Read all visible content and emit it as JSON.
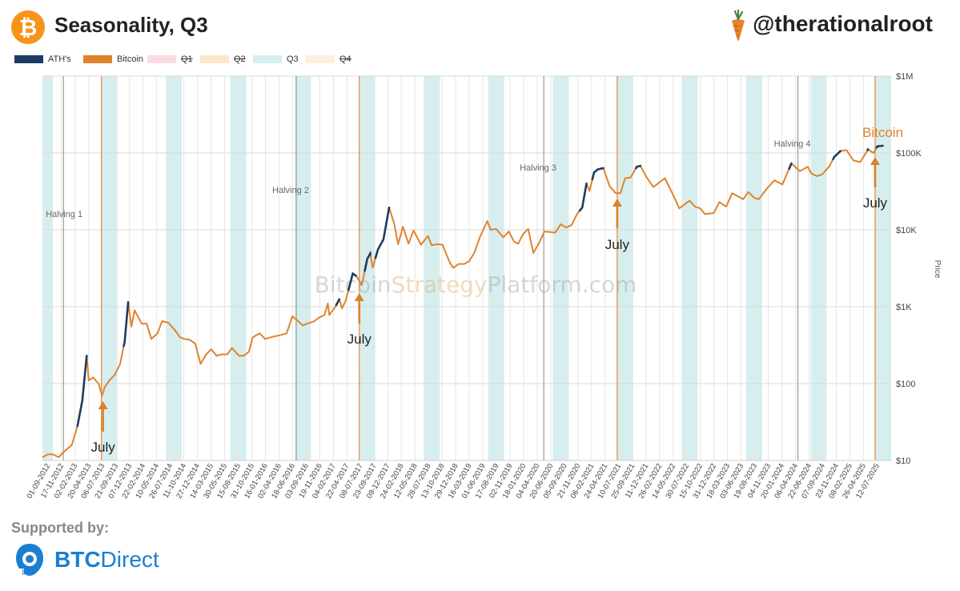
{
  "header": {
    "title": "Seasonality, Q3",
    "handle": "@therationalroot",
    "logo_glyph": "₿"
  },
  "legend": [
    {
      "label": "ATH's",
      "color": "#1f3b63",
      "struck": false
    },
    {
      "label": "Bitcoin",
      "color": "#e0832c",
      "struck": false
    },
    {
      "label": "Q1",
      "color": "#fbdde1",
      "struck": true
    },
    {
      "label": "Q2",
      "color": "#fde6cc",
      "struck": true
    },
    {
      "label": "Q3",
      "color": "#d7eeee",
      "struck": false
    },
    {
      "label": "Q4",
      "color": "#fdf0dc",
      "struck": true
    }
  ],
  "footer": {
    "supported_by": "Supported by:",
    "sponsor_bold": "BTC",
    "sponsor_thin": "Direct"
  },
  "chart_data": {
    "type": "line",
    "y_scale": "log",
    "ylim": [
      10,
      1000000
    ],
    "ylabel": "Price",
    "y_ticks": [
      {
        "value": 10,
        "label": "$10"
      },
      {
        "value": 100,
        "label": "$100"
      },
      {
        "value": 1000,
        "label": "$1K"
      },
      {
        "value": 10000,
        "label": "$10K"
      },
      {
        "value": 100000,
        "label": "$100K"
      },
      {
        "value": 1000000,
        "label": "$1M"
      }
    ],
    "xlim": [
      "2012-08-01",
      "2025-09-30"
    ],
    "x_tick_labels": [
      "01-09-2012",
      "17-11-2012",
      "02-02-2013",
      "20-04-2013",
      "06-07-2013",
      "21-09-2013",
      "07-12-2013",
      "22-02-2014",
      "10-05-2014",
      "26-07-2014",
      "11-10-2014",
      "27-12-2014",
      "14-03-2015",
      "30-05-2015",
      "15-08-2015",
      "31-10-2015",
      "16-01-2016",
      "02-04-2016",
      "18-06-2016",
      "03-09-2016",
      "19-11-2016",
      "04-02-2017",
      "22-04-2017",
      "08-07-2017",
      "23-09-2017",
      "09-12-2017",
      "24-02-2018",
      "12-05-2018",
      "28-07-2018",
      "13-10-2018",
      "29-12-2018",
      "16-03-2019",
      "01-06-2019",
      "17-08-2019",
      "02-11-2019",
      "18-01-2020",
      "04-04-2020",
      "20-06-2020",
      "05-09-2020",
      "21-11-2020",
      "06-02-2021",
      "24-04-2021",
      "10-07-2021",
      "25-09-2021",
      "11-12-2021",
      "26-02-2022",
      "14-05-2022",
      "30-07-2022",
      "15-10-2022",
      "31-12-2022",
      "18-03-2023",
      "03-06-2023",
      "19-08-2023",
      "04-11-2023",
      "20-01-2024",
      "06-04-2024",
      "22-06-2024",
      "07-09-2024",
      "23-11-2024",
      "08-02-2025",
      "26-04-2025",
      "12-07-2025"
    ],
    "q3_years": [
      2012,
      2013,
      2014,
      2015,
      2016,
      2017,
      2018,
      2019,
      2020,
      2021,
      2022,
      2023,
      2024,
      2025
    ],
    "halvings": [
      {
        "label": "Halving 1",
        "date": "2012-11-28"
      },
      {
        "label": "Halving 2",
        "date": "2016-07-09"
      },
      {
        "label": "Halving 3",
        "date": "2020-05-11"
      },
      {
        "label": "Halving 4",
        "date": "2024-04-20"
      }
    ],
    "july_markers": [
      {
        "label": "July",
        "date": "2013-07-01",
        "price": 70
      },
      {
        "label": "July",
        "date": "2017-07-01",
        "price": 2000
      },
      {
        "label": "July",
        "date": "2021-07-01",
        "price": 30000
      },
      {
        "label": "July",
        "date": "2025-07-01",
        "price": 108000
      }
    ],
    "watermark": {
      "part1": "Bitcoin",
      "part2": "Strategy",
      "part3": "Platform.com"
    },
    "series_label": "Bitcoin",
    "series": [
      {
        "name": "Bitcoin",
        "points": [
          [
            "2012-08-01",
            11
          ],
          [
            "2012-09-01",
            12
          ],
          [
            "2012-10-01",
            12
          ],
          [
            "2012-11-01",
            11
          ],
          [
            "2012-12-01",
            13
          ],
          [
            "2013-01-15",
            16
          ],
          [
            "2013-02-15",
            28
          ],
          [
            "2013-03-15",
            60
          ],
          [
            "2013-04-09",
            230
          ],
          [
            "2013-04-20",
            110
          ],
          [
            "2013-05-15",
            120
          ],
          [
            "2013-06-15",
            100
          ],
          [
            "2013-07-05",
            70
          ],
          [
            "2013-07-20",
            90
          ],
          [
            "2013-08-15",
            110
          ],
          [
            "2013-09-15",
            130
          ],
          [
            "2013-10-15",
            180
          ],
          [
            "2013-11-10",
            350
          ],
          [
            "2013-11-30",
            1150
          ],
          [
            "2013-12-18",
            550
          ],
          [
            "2014-01-05",
            900
          ],
          [
            "2014-02-15",
            600
          ],
          [
            "2014-03-15",
            600
          ],
          [
            "2014-04-10",
            380
          ],
          [
            "2014-05-15",
            450
          ],
          [
            "2014-06-10",
            650
          ],
          [
            "2014-07-15",
            620
          ],
          [
            "2014-08-20",
            500
          ],
          [
            "2014-09-20",
            400
          ],
          [
            "2014-10-15",
            380
          ],
          [
            "2014-11-15",
            370
          ],
          [
            "2014-12-15",
            330
          ],
          [
            "2015-01-14",
            180
          ],
          [
            "2015-02-15",
            240
          ],
          [
            "2015-03-15",
            280
          ],
          [
            "2015-04-15",
            230
          ],
          [
            "2015-05-15",
            240
          ],
          [
            "2015-06-15",
            240
          ],
          [
            "2015-07-10",
            290
          ],
          [
            "2015-08-20",
            230
          ],
          [
            "2015-09-15",
            230
          ],
          [
            "2015-10-15",
            260
          ],
          [
            "2015-11-05",
            400
          ],
          [
            "2015-12-15",
            450
          ],
          [
            "2016-01-15",
            380
          ],
          [
            "2016-02-15",
            400
          ],
          [
            "2016-03-15",
            415
          ],
          [
            "2016-04-15",
            430
          ],
          [
            "2016-05-15",
            450
          ],
          [
            "2016-06-17",
            750
          ],
          [
            "2016-07-15",
            660
          ],
          [
            "2016-08-15",
            570
          ],
          [
            "2016-09-15",
            610
          ],
          [
            "2016-10-15",
            640
          ],
          [
            "2016-11-15",
            720
          ],
          [
            "2016-12-15",
            780
          ],
          [
            "2017-01-04",
            1100
          ],
          [
            "2017-01-12",
            780
          ],
          [
            "2017-02-15",
            1000
          ],
          [
            "2017-03-10",
            1250
          ],
          [
            "2017-03-25",
            950
          ],
          [
            "2017-04-15",
            1200
          ],
          [
            "2017-05-25",
            2700
          ],
          [
            "2017-06-15",
            2500
          ],
          [
            "2017-07-15",
            1900
          ],
          [
            "2017-08-15",
            4200
          ],
          [
            "2017-09-01",
            4900
          ],
          [
            "2017-09-15",
            3200
          ],
          [
            "2017-10-15",
            5600
          ],
          [
            "2017-11-15",
            7500
          ],
          [
            "2017-12-17",
            19500
          ],
          [
            "2018-01-15",
            12000
          ],
          [
            "2018-02-06",
            6500
          ],
          [
            "2018-03-05",
            11000
          ],
          [
            "2018-04-06",
            6600
          ],
          [
            "2018-05-05",
            9800
          ],
          [
            "2018-06-15",
            6400
          ],
          [
            "2018-07-25",
            8300
          ],
          [
            "2018-08-15",
            6300
          ],
          [
            "2018-09-15",
            6500
          ],
          [
            "2018-10-15",
            6400
          ],
          [
            "2018-11-25",
            3800
          ],
          [
            "2018-12-15",
            3200
          ],
          [
            "2019-01-15",
            3600
          ],
          [
            "2019-02-15",
            3600
          ],
          [
            "2019-03-15",
            3900
          ],
          [
            "2019-04-15",
            5100
          ],
          [
            "2019-05-15",
            8000
          ],
          [
            "2019-06-26",
            13000
          ],
          [
            "2019-07-15",
            10000
          ],
          [
            "2019-08-15",
            10300
          ],
          [
            "2019-09-25",
            8000
          ],
          [
            "2019-10-26",
            9500
          ],
          [
            "2019-11-25",
            7000
          ],
          [
            "2019-12-18",
            6600
          ],
          [
            "2020-01-15",
            8800
          ],
          [
            "2020-02-13",
            10300
          ],
          [
            "2020-03-13",
            5000
          ],
          [
            "2020-04-15",
            6800
          ],
          [
            "2020-05-15",
            9500
          ],
          [
            "2020-06-15",
            9400
          ],
          [
            "2020-07-15",
            9200
          ],
          [
            "2020-08-15",
            11800
          ],
          [
            "2020-09-15",
            10700
          ],
          [
            "2020-10-15",
            11500
          ],
          [
            "2020-11-15",
            16000
          ],
          [
            "2020-12-15",
            19500
          ],
          [
            "2021-01-08",
            40000
          ],
          [
            "2021-01-25",
            32000
          ],
          [
            "2021-02-20",
            56000
          ],
          [
            "2021-03-13",
            61000
          ],
          [
            "2021-04-14",
            63500
          ],
          [
            "2021-05-19",
            37000
          ],
          [
            "2021-06-22",
            30000
          ],
          [
            "2021-07-20",
            30000
          ],
          [
            "2021-08-15",
            47000
          ],
          [
            "2021-09-15",
            48000
          ],
          [
            "2021-10-20",
            66000
          ],
          [
            "2021-11-10",
            68000
          ],
          [
            "2021-12-15",
            48000
          ],
          [
            "2022-01-22",
            36000
          ],
          [
            "2022-03-28",
            47000
          ],
          [
            "2022-05-12",
            29000
          ],
          [
            "2022-06-18",
            19000
          ],
          [
            "2022-08-15",
            24000
          ],
          [
            "2022-09-15",
            20000
          ],
          [
            "2022-10-15",
            19000
          ],
          [
            "2022-11-10",
            16000
          ],
          [
            "2022-12-30",
            16500
          ],
          [
            "2023-01-31",
            23000
          ],
          [
            "2023-03-10",
            20000
          ],
          [
            "2023-04-14",
            30000
          ],
          [
            "2023-06-15",
            25000
          ],
          [
            "2023-07-14",
            31000
          ],
          [
            "2023-08-17",
            26000
          ],
          [
            "2023-09-11",
            25000
          ],
          [
            "2023-10-25",
            34000
          ],
          [
            "2023-12-08",
            44000
          ],
          [
            "2024-01-23",
            39000
          ],
          [
            "2024-03-14",
            73000
          ],
          [
            "2024-05-01",
            58000
          ],
          [
            "2024-06-15",
            66000
          ],
          [
            "2024-07-05",
            54000
          ],
          [
            "2024-08-05",
            50000
          ],
          [
            "2024-09-06",
            53000
          ],
          [
            "2024-10-15",
            67000
          ],
          [
            "2024-11-12",
            89000
          ],
          [
            "2024-12-17",
            106000
          ],
          [
            "2025-01-20",
            109000
          ],
          [
            "2025-02-28",
            80000
          ],
          [
            "2025-04-08",
            76000
          ],
          [
            "2025-05-22",
            111000
          ],
          [
            "2025-06-22",
            100000
          ],
          [
            "2025-07-14",
            122000
          ],
          [
            "2025-08-14",
            124000
          ]
        ]
      }
    ],
    "ath_periods": [
      [
        "2013-02-15",
        "2013-04-09"
      ],
      [
        "2013-11-05",
        "2013-11-30"
      ],
      [
        "2017-02-20",
        "2017-03-10"
      ],
      [
        "2017-05-01",
        "2017-06-12"
      ],
      [
        "2017-08-01",
        "2017-09-02"
      ],
      [
        "2017-10-01",
        "2017-12-17"
      ],
      [
        "2020-12-01",
        "2021-01-08"
      ],
      [
        "2021-02-10",
        "2021-04-14"
      ],
      [
        "2021-10-15",
        "2021-11-10"
      ],
      [
        "2024-03-01",
        "2024-03-14"
      ],
      [
        "2024-11-05",
        "2024-12-17"
      ],
      [
        "2025-05-20",
        "2025-05-23"
      ],
      [
        "2025-07-10",
        "2025-08-14"
      ]
    ]
  }
}
